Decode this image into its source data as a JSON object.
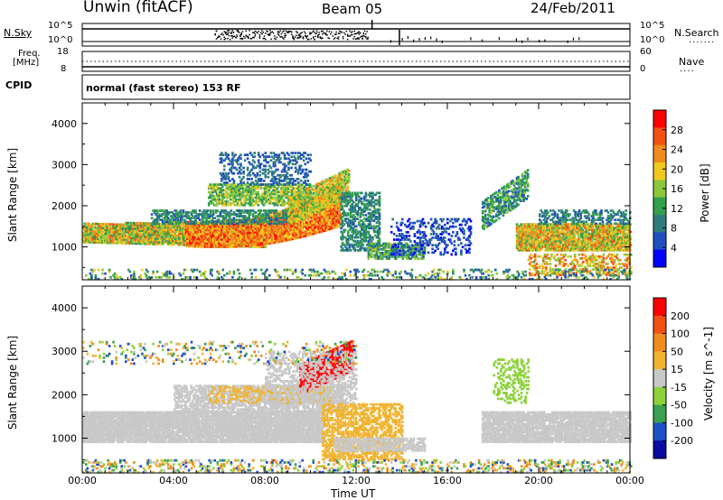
{
  "header": {
    "title": "Unwin (fitACF)",
    "beam": "Beam 05",
    "date": "24/Feb/2011"
  },
  "top_panels": {
    "nsky_label": "N.Sky",
    "nsky_ticks": [
      "10^5",
      "10^0"
    ],
    "nsearch_label": "N.Search",
    "nsearch_ticks": [
      "10^5",
      "10^0"
    ],
    "freq_label": "Freq.",
    "freq_unit": "[MHz]",
    "freq_ticks": [
      "18",
      "8"
    ],
    "nave_label": "Nave",
    "nave_ticks": [
      "60",
      "0"
    ],
    "cpid_label": "CPID",
    "cpid_value": "normal (fast stereo) 153 RF"
  },
  "chart_data": [
    {
      "type": "heatmap",
      "name": "power",
      "ylabel": "Slant Range [km]",
      "xlabel": "",
      "yticks": [
        "1000",
        "2000",
        "3000",
        "4000"
      ],
      "ylim": [
        200,
        4500
      ],
      "xlim": [
        0,
        24
      ],
      "colorbar_label": "Power [dB]",
      "colorbar_ticks": [
        "28",
        "24",
        "20",
        "16",
        "12",
        "8",
        "4"
      ],
      "colorbar_range": [
        0,
        32
      ],
      "colorbar_colors": [
        "#0000ff",
        "#1f4fbf",
        "#2e7d7d",
        "#32a04a",
        "#8cc83c",
        "#f0c81e",
        "#f08c1e",
        "#f05014",
        "#ff0000"
      ]
    },
    {
      "type": "heatmap",
      "name": "velocity",
      "ylabel": "Slant Range [km]",
      "xlabel": "Time UT",
      "yticks": [
        "1000",
        "2000",
        "3000",
        "4000"
      ],
      "ylim": [
        200,
        4500
      ],
      "xlim": [
        0,
        24
      ],
      "xticks": [
        "00:00",
        "04:00",
        "08:00",
        "12:00",
        "16:00",
        "20:00",
        "00:00"
      ],
      "colorbar_label": "Velocity [m s^-1]",
      "colorbar_ticks": [
        "200",
        "100",
        "50",
        "15",
        "-15",
        "-50",
        "-100",
        "-200"
      ],
      "colorbar_colors": [
        "#0a0aa0",
        "#1e50c8",
        "#3ca050",
        "#8cd23c",
        "#c8c8c8",
        "#f0b432",
        "#f08c1e",
        "#f05014",
        "#ff0000"
      ]
    }
  ]
}
